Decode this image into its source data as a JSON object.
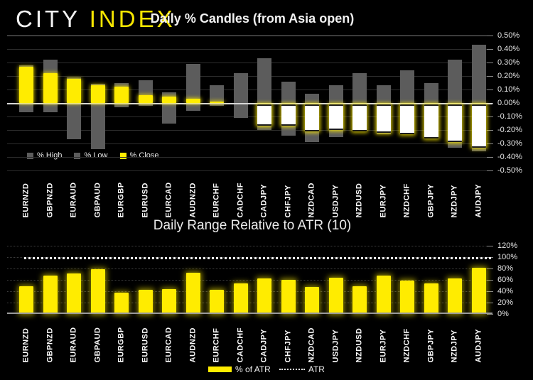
{
  "brand": {
    "logo_city": "CITY",
    "logo_index": "INDEX"
  },
  "colors": {
    "background": "#000000",
    "accent_yellow": "#ffec00",
    "wick_gray": "#5c5c5c",
    "negative_body": "#ffffff",
    "zero_line": "#d8d8d8",
    "atr_line": "#f2f2f2"
  },
  "chart_data": [
    {
      "type": "bar",
      "title": "Daily % Candles (from Asia open)",
      "categories": [
        "EURNZD",
        "GBPNZD",
        "EURAUD",
        "GBPAUD",
        "EURGBP",
        "EURUSD",
        "EURCAD",
        "AUDNZD",
        "EURCHF",
        "CADCHF",
        "CADJPY",
        "CHFJPY",
        "NZDCAD",
        "USDJPY",
        "NZDUSD",
        "EURJPY",
        "NZDCHF",
        "GBPJPY",
        "NZDJPY",
        "AUDJPY"
      ],
      "series": [
        {
          "name": "% High",
          "color": "#5c5c5c",
          "values": [
            0.28,
            0.32,
            0.19,
            0.14,
            0.15,
            0.17,
            0.08,
            0.29,
            0.13,
            0.22,
            0.33,
            0.16,
            0.07,
            0.13,
            0.22,
            0.13,
            0.24,
            0.15,
            0.32,
            0.43
          ]
        },
        {
          "name": "% Low",
          "color": "#5c5c5c",
          "values": [
            -0.07,
            -0.07,
            -0.27,
            -0.34,
            -0.03,
            -0.02,
            -0.15,
            -0.06,
            -0.02,
            -0.11,
            -0.2,
            -0.24,
            -0.29,
            -0.25,
            -0.21,
            -0.23,
            -0.23,
            -0.26,
            -0.33,
            -0.36
          ]
        },
        {
          "name": "% Close",
          "color": "#ffec00",
          "values": [
            0.27,
            0.22,
            0.18,
            0.13,
            0.12,
            0.06,
            0.05,
            0.03,
            0.01,
            0.0,
            -0.16,
            -0.16,
            -0.2,
            -0.19,
            -0.2,
            -0.21,
            -0.22,
            -0.25,
            -0.28,
            -0.32
          ]
        }
      ],
      "ylim": [
        -0.5,
        0.5
      ],
      "y_ticks": [
        "0.50%",
        "0.40%",
        "0.30%",
        "0.20%",
        "0.10%",
        "0.00%",
        "-0.10%",
        "-0.20%",
        "-0.30%",
        "-0.40%",
        "-0.50%"
      ],
      "grid": true,
      "legend_position": "bottom-left",
      "negative_close_fill": "#ffffff"
    },
    {
      "type": "bar",
      "title": "Daily Range Relative to ATR (10)",
      "categories": [
        "EURNZD",
        "GBPNZD",
        "EURAUD",
        "GBPAUD",
        "EURGBP",
        "EURUSD",
        "EURCAD",
        "AUDNZD",
        "EURCHF",
        "CADCHF",
        "CADJPY",
        "CHFJPY",
        "NZDCAD",
        "USDJPY",
        "NZDUSD",
        "EURJPY",
        "NZDCHF",
        "GBPJPY",
        "NZDJPY",
        "AUDJPY"
      ],
      "series": [
        {
          "name": "% of ATR",
          "color": "#ffec00",
          "values": [
            49,
            68,
            71,
            79,
            38,
            43,
            44,
            73,
            42,
            54,
            62,
            60,
            48,
            64,
            49,
            67,
            59,
            54,
            63,
            81
          ]
        }
      ],
      "reference_line": {
        "name": "ATR",
        "value": 100,
        "style": "dotted",
        "color": "#f2f2f2"
      },
      "ylim": [
        0,
        120
      ],
      "y_ticks": [
        "120%",
        "100%",
        "80%",
        "60%",
        "40%",
        "20%",
        "0%"
      ],
      "grid": true,
      "legend_position": "bottom-center"
    }
  ]
}
